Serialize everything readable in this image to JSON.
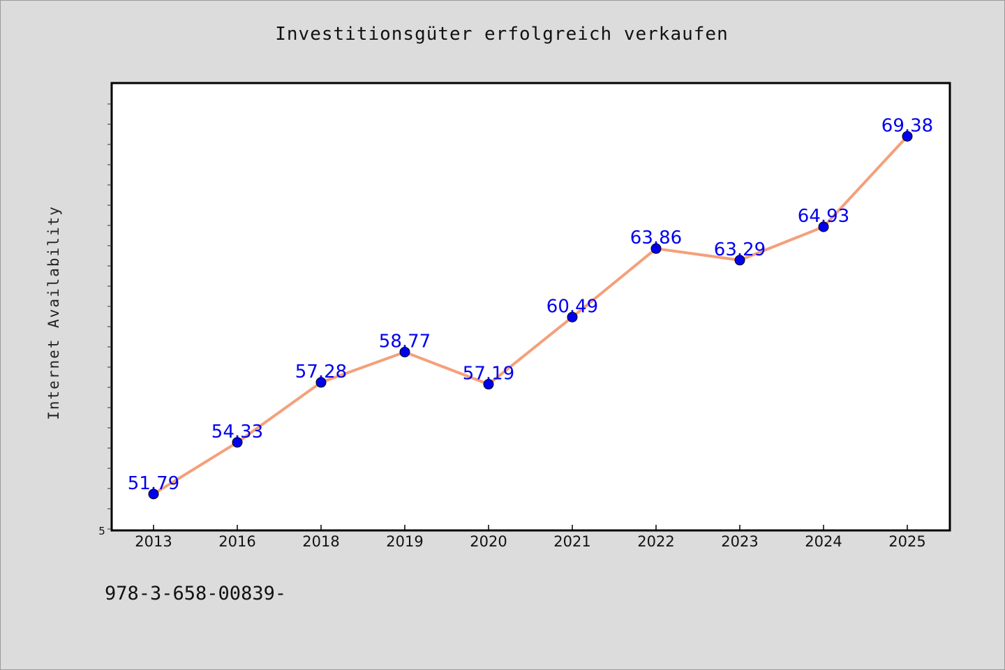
{
  "chart_data": {
    "type": "line",
    "title": "Investitionsgüter erfolgreich verkaufen",
    "ylabel": "Internet Availability",
    "xlabel": "",
    "categories": [
      "2013",
      "2016",
      "2018",
      "2019",
      "2020",
      "2021",
      "2022",
      "2023",
      "2024",
      "2025"
    ],
    "series": [
      {
        "values": [
          51.79,
          54.33,
          57.28,
          58.77,
          57.19,
          60.49,
          63.86,
          63.29,
          64.93,
          69.38
        ],
        "labels": [
          "51.79",
          "54.33",
          "57.28",
          "58.77",
          "57.19",
          "60.49",
          "63.86",
          "63.29",
          "64.93",
          "69.38"
        ]
      }
    ],
    "y_tick_label": "5",
    "ylim": [
      50.0,
      72.0
    ],
    "grid": false,
    "line_color": "#f4a07a",
    "marker_color": "#0000ee",
    "label_color": "#0000ee"
  },
  "footer_text": "978-3-658-00839-"
}
